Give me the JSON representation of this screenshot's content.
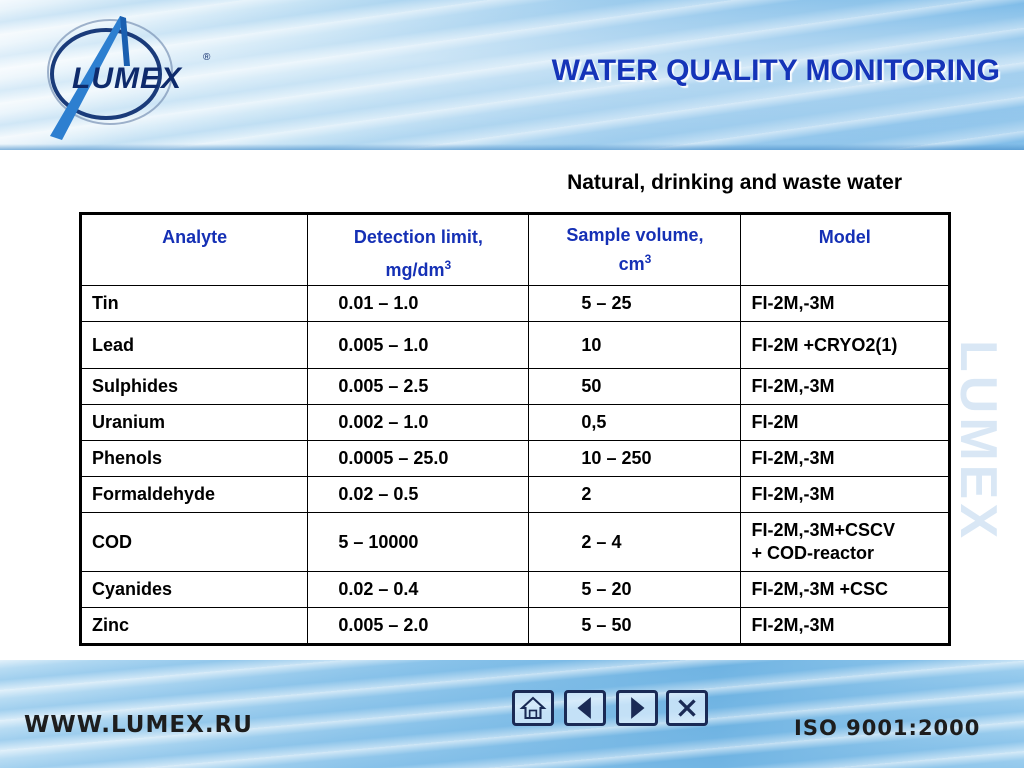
{
  "header": {
    "logo_text": "LUMEX",
    "logo_reg": "®",
    "title": "WATER QUALITY MONITORING"
  },
  "subtitle": "Natural, drinking and waste water",
  "side_watermark": "LUMEX",
  "table": {
    "headers": {
      "analyte": "Analyte",
      "detection_line1": "Detection limit,",
      "detection_line2": "mg/dm",
      "detection_sup": "3",
      "volume_line1": "Sample volume,",
      "volume_line2": "cm",
      "volume_sup": "3",
      "model": "Model"
    },
    "rows": [
      {
        "analyte": "Tin",
        "detection": "0.01 – 1.0",
        "volume": "5 – 25",
        "model_1": "FI-2M,-3M",
        "model_2": ""
      },
      {
        "analyte": "Lead",
        "detection": "0.005 – 1.0",
        "volume": "10",
        "model_1": "FI-2M +CRYO2(1)",
        "model_2": ""
      },
      {
        "analyte": "Sulphides",
        "detection": "0.005 – 2.5",
        "volume": "50",
        "model_1": "FI-2M,-3M",
        "model_2": ""
      },
      {
        "analyte": "Uranium",
        "detection": "0.002 – 1.0",
        "volume": "0,5",
        "model_1": "FI-2M",
        "model_2": ""
      },
      {
        "analyte": "Phenols",
        "detection": "0.0005 – 25.0",
        "volume": "10 – 250",
        "model_1": "FI-2M,-3M",
        "model_2": ""
      },
      {
        "analyte": "Formaldehyde",
        "detection": "0.02 – 0.5",
        "volume": "2",
        "model_1": "FI-2M,-3M",
        "model_2": ""
      },
      {
        "analyte": "COD",
        "detection": "5 – 10000",
        "volume": "2 – 4",
        "model_1": "FI-2M,-3M+CSCV",
        "model_2": "+ COD-reactor"
      },
      {
        "analyte": "Cyanides",
        "detection": "0.02 – 0.4",
        "volume": "5 – 20",
        "model_1": "FI-2M,-3M +CSC",
        "model_2": ""
      },
      {
        "analyte": "Zinc",
        "detection": "0.005 – 2.0",
        "volume": "5 – 50",
        "model_1": "FI-2M,-3M",
        "model_2": ""
      }
    ]
  },
  "footer": {
    "url": "WWW.LUMEX.RU",
    "iso": "ISO 9001:2000"
  },
  "nav_icons": [
    "home-icon",
    "previous-icon",
    "next-icon",
    "close-icon"
  ],
  "colors": {
    "title": "#1534b8",
    "header_text": "#1530b5",
    "logo": "#0e2a6b"
  }
}
